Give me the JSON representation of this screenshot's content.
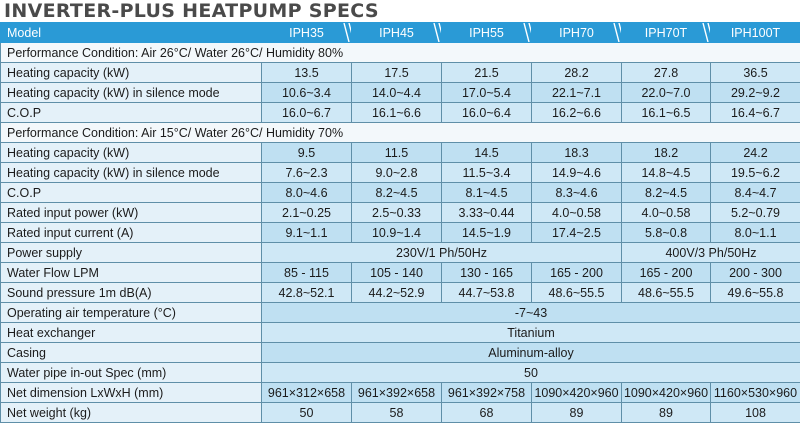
{
  "title": "INVERTER-PLUS HEATPUMP SPECS",
  "header": {
    "label": "Model",
    "models": [
      "IPH35",
      "IPH45",
      "IPH55",
      "IPH70",
      "IPH70T",
      "IPH100T"
    ]
  },
  "sections": {
    "cond1": "Performance Condition: Air 26°C/ Water 26°C/ Humidity 80%",
    "cond2": "Performance Condition: Air 15°C/ Water 26°C/ Humidity 70%"
  },
  "rows": {
    "heat1": {
      "label": "Heating capacity (kW)",
      "v": [
        "13.5",
        "17.5",
        "21.5",
        "28.2",
        "27.8",
        "36.5"
      ]
    },
    "silent1": {
      "label": "Heating capacity (kW) in silence mode",
      "v": [
        "10.6~3.4",
        "14.0~4.4",
        "17.0~5.4",
        "22.1~7.1",
        "22.0~7.0",
        "29.2~9.2"
      ]
    },
    "cop1": {
      "label": "C.O.P",
      "v": [
        "16.0~6.7",
        "16.1~6.6",
        "16.0~6.4",
        "16.2~6.6",
        "16.1~6.5",
        "16.4~6.7"
      ]
    },
    "heat2": {
      "label": "Heating capacity (kW)",
      "v": [
        "9.5",
        "11.5",
        "14.5",
        "18.3",
        "18.2",
        "24.2"
      ]
    },
    "silent2": {
      "label": "Heating capacity (kW) in silence mode",
      "v": [
        "7.6~2.3",
        "9.0~2.8",
        "11.5~3.4",
        "14.9~4.6",
        "14.8~4.5",
        "19.5~6.2"
      ]
    },
    "cop2": {
      "label": "C.O.P",
      "v": [
        "8.0~4.6",
        "8.2~4.5",
        "8.1~4.5",
        "8.3~4.6",
        "8.2~4.5",
        "8.4~4.7"
      ]
    },
    "power": {
      "label": "Rated input power (kW)",
      "v": [
        "2.1~0.25",
        "2.5~0.33",
        "3.33~0.44",
        "4.0~0.58",
        "4.0~0.58",
        "5.2~0.79"
      ]
    },
    "current": {
      "label": "Rated input current (A)",
      "v": [
        "9.1~1.1",
        "10.9~1.4",
        "14.5~1.9",
        "17.4~2.5",
        "5.8~0.8",
        "8.0~1.1"
      ]
    },
    "supply": {
      "label": "Power supply",
      "single": "230V/1 Ph/50Hz",
      "three": "400V/3 Ph/50Hz"
    },
    "flow": {
      "label": "Water Flow LPM",
      "v": [
        "85 - 115",
        "105 - 140",
        "130 - 165",
        "165 - 200",
        "165 - 200",
        "200 - 300"
      ]
    },
    "sound": {
      "label": "Sound pressure 1m dB(A)",
      "v": [
        "42.8~52.1",
        "44.2~52.9",
        "44.7~53.8",
        "48.6~55.5",
        "48.6~55.5",
        "49.6~55.8"
      ]
    },
    "optemp": {
      "label": "Operating air temperature (°C)",
      "all": "-7~43"
    },
    "exchanger": {
      "label": "Heat exchanger",
      "all": "Titanium"
    },
    "casing": {
      "label": "Casing",
      "all": "Aluminum-alloy"
    },
    "pipe": {
      "label": "Water pipe in-out Spec (mm)",
      "all": "50"
    },
    "dimension": {
      "label": "Net dimension LxWxH (mm)",
      "v": [
        "961×312×658",
        "961×392×658",
        "961×392×758",
        "1090×420×960",
        "1090×420×960",
        "1160×530×960"
      ]
    },
    "weight": {
      "label": "Net weight (kg)",
      "v": [
        "50",
        "58",
        "68",
        "89",
        "89",
        "108"
      ]
    }
  },
  "colors": {
    "header": "#2a9ad6",
    "cell": "#cfe8f6",
    "label": "#e4f1f9",
    "border": "#5f8fa8",
    "title": "#4a4a4a"
  }
}
